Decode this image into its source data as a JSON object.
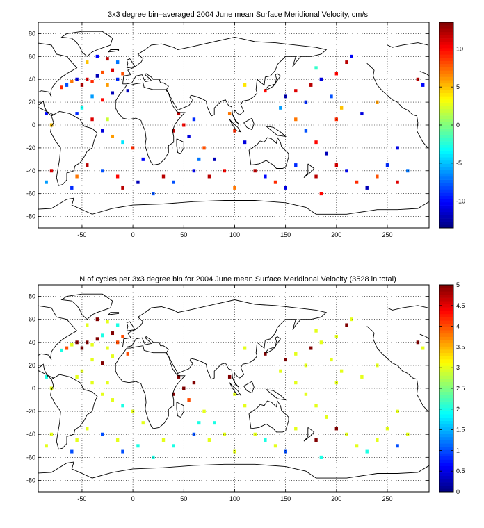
{
  "chart_data": [
    {
      "type": "heatmap",
      "title": "3x3 degree bin–averaged 2004 June mean Surface Meridional Velocity, cm/s",
      "xlabel": "",
      "ylabel": "",
      "xlim": [
        -93,
        291
      ],
      "ylim": [
        -90,
        90
      ],
      "x_ticks": [
        -50,
        0,
        50,
        100,
        150,
        200,
        250
      ],
      "y_ticks": [
        -80,
        -60,
        -40,
        -20,
        0,
        20,
        40,
        60,
        80
      ],
      "grid": true,
      "bin_size_deg": 3,
      "colorbar": {
        "range": [
          -13.5,
          13.5
        ],
        "ticks": [
          -10,
          -5,
          0,
          5,
          10
        ],
        "colormap": "jet",
        "placement": "right"
      },
      "cells": [
        [
          -45,
          40,
          11
        ],
        [
          -40,
          38,
          9
        ],
        [
          -35,
          43,
          -12
        ],
        [
          -30,
          46,
          8
        ],
        [
          -20,
          48,
          11
        ],
        [
          -15,
          40,
          -9
        ],
        [
          -25,
          35,
          6
        ],
        [
          -50,
          35,
          12
        ],
        [
          -55,
          40,
          -11
        ],
        [
          -60,
          38,
          7
        ],
        [
          -65,
          35,
          -8
        ],
        [
          -70,
          33,
          9
        ],
        [
          -40,
          25,
          -6
        ],
        [
          -30,
          22,
          10
        ],
        [
          -20,
          28,
          -12
        ],
        [
          -45,
          55,
          5
        ],
        [
          -35,
          60,
          -10
        ],
        [
          -25,
          58,
          12
        ],
        [
          -15,
          55,
          -7
        ],
        [
          -10,
          45,
          8
        ],
        [
          -55,
          10,
          -9
        ],
        [
          -40,
          5,
          11
        ],
        [
          -30,
          -5,
          -11
        ],
        [
          -20,
          -10,
          6
        ],
        [
          -10,
          -15,
          -4
        ],
        [
          0,
          -20,
          9
        ],
        [
          10,
          -30,
          -10
        ],
        [
          -45,
          -35,
          12
        ],
        [
          -30,
          -40,
          -8
        ],
        [
          -15,
          -45,
          10
        ],
        [
          5,
          -50,
          -12
        ],
        [
          -55,
          -45,
          7
        ],
        [
          -60,
          -55,
          -9
        ],
        [
          -80,
          -40,
          11
        ],
        [
          -85,
          -50,
          -6
        ],
        [
          -80,
          0,
          5
        ],
        [
          -85,
          10,
          -10
        ],
        [
          40,
          -5,
          12
        ],
        [
          50,
          0,
          10
        ],
        [
          55,
          -10,
          -11
        ],
        [
          45,
          10,
          12
        ],
        [
          60,
          5,
          -9
        ],
        [
          70,
          -20,
          8
        ],
        [
          80,
          -30,
          -12
        ],
        [
          90,
          -40,
          10
        ],
        [
          60,
          -40,
          -10
        ],
        [
          30,
          -45,
          12
        ],
        [
          40,
          -50,
          -8
        ],
        [
          100,
          -5,
          9
        ],
        [
          110,
          -15,
          -11
        ],
        [
          95,
          10,
          7
        ],
        [
          120,
          -40,
          12
        ],
        [
          130,
          -45,
          -10
        ],
        [
          140,
          -50,
          9
        ],
        [
          150,
          25,
          -12
        ],
        [
          160,
          30,
          11
        ],
        [
          170,
          20,
          -9
        ],
        [
          175,
          35,
          12
        ],
        [
          185,
          40,
          -11
        ],
        [
          200,
          45,
          10
        ],
        [
          210,
          55,
          12
        ],
        [
          215,
          60,
          -10
        ],
        [
          160,
          5,
          7
        ],
        [
          170,
          -5,
          -8
        ],
        [
          180,
          -15,
          10
        ],
        [
          190,
          -25,
          -12
        ],
        [
          200,
          -35,
          11
        ],
        [
          210,
          -40,
          -10
        ],
        [
          220,
          -50,
          9
        ],
        [
          230,
          -55,
          -12
        ],
        [
          240,
          -45,
          8
        ],
        [
          250,
          -35,
          -9
        ],
        [
          260,
          -50,
          11
        ],
        [
          270,
          -40,
          -7
        ],
        [
          280,
          40,
          12
        ],
        [
          285,
          35,
          -10
        ],
        [
          240,
          20,
          6
        ],
        [
          225,
          10,
          -11
        ],
        [
          200,
          5,
          9
        ],
        [
          180,
          -45,
          12
        ],
        [
          185,
          -60,
          10
        ],
        [
          160,
          -35,
          -9
        ],
        [
          145,
          15,
          -6
        ],
        [
          130,
          30,
          10
        ],
        [
          -5,
          30,
          -12
        ],
        [
          -10,
          -55,
          12
        ],
        [
          20,
          -60,
          -8
        ],
        [
          100,
          -55,
          7
        ],
        [
          150,
          -55,
          -11
        ],
        [
          75,
          -45,
          12
        ],
        [
          65,
          -30,
          -7
        ],
        [
          195,
          25,
          -8
        ],
        [
          205,
          15,
          5
        ],
        [
          260,
          -20,
          -10
        ],
        [
          -50,
          15,
          -3
        ],
        [
          -25,
          5,
          2
        ],
        [
          110,
          35,
          4
        ],
        [
          180,
          50,
          -2
        ]
      ]
    },
    {
      "type": "heatmap",
      "title": "N of cycles per 3x3 degree bin for 2004 June mean Surface Meridional Velocity (3528 in total)",
      "xlabel": "",
      "ylabel": "",
      "xlim": [
        -93,
        291
      ],
      "ylim": [
        -90,
        90
      ],
      "x_ticks": [
        -50,
        0,
        50,
        100,
        150,
        200,
        250
      ],
      "y_ticks": [
        -80,
        -60,
        -40,
        -20,
        0,
        20,
        40,
        60,
        80
      ],
      "grid": true,
      "bin_size_deg": 3,
      "colorbar": {
        "range": [
          0,
          5
        ],
        "ticks": [
          0,
          0.5,
          1,
          1.5,
          2,
          2.5,
          3,
          3.5,
          4,
          4.5,
          5
        ],
        "colormap": "jet",
        "placement": "right"
      },
      "cells": [
        [
          -45,
          40,
          5
        ],
        [
          -40,
          38,
          3
        ],
        [
          -35,
          43,
          5
        ],
        [
          -30,
          46,
          2
        ],
        [
          -20,
          48,
          5
        ],
        [
          -15,
          40,
          4
        ],
        [
          -25,
          35,
          3
        ],
        [
          -50,
          35,
          5
        ],
        [
          -55,
          40,
          5
        ],
        [
          -60,
          38,
          3
        ],
        [
          -65,
          35,
          4
        ],
        [
          -70,
          33,
          2
        ],
        [
          -40,
          25,
          3
        ],
        [
          -30,
          22,
          5
        ],
        [
          -20,
          28,
          3
        ],
        [
          -45,
          55,
          3
        ],
        [
          -35,
          60,
          5
        ],
        [
          -25,
          58,
          3
        ],
        [
          -15,
          55,
          2
        ],
        [
          -10,
          45,
          4
        ],
        [
          -55,
          10,
          3
        ],
        [
          -40,
          5,
          3
        ],
        [
          -30,
          -5,
          3
        ],
        [
          -20,
          -10,
          3
        ],
        [
          -10,
          -15,
          2
        ],
        [
          0,
          -20,
          3
        ],
        [
          10,
          -30,
          3
        ],
        [
          -45,
          -35,
          3
        ],
        [
          -30,
          -40,
          1
        ],
        [
          -15,
          -45,
          3
        ],
        [
          5,
          -50,
          2
        ],
        [
          -55,
          -45,
          3
        ],
        [
          -60,
          -55,
          1
        ],
        [
          -80,
          -40,
          3
        ],
        [
          -85,
          -50,
          3
        ],
        [
          -80,
          0,
          3
        ],
        [
          -85,
          10,
          2
        ],
        [
          40,
          -5,
          5
        ],
        [
          50,
          0,
          5
        ],
        [
          55,
          -10,
          4
        ],
        [
          45,
          10,
          5
        ],
        [
          60,
          5,
          5
        ],
        [
          70,
          -20,
          3
        ],
        [
          80,
          -30,
          2
        ],
        [
          90,
          -40,
          3
        ],
        [
          60,
          -40,
          1
        ],
        [
          30,
          -45,
          3
        ],
        [
          40,
          -50,
          2
        ],
        [
          100,
          -5,
          3
        ],
        [
          110,
          -15,
          3
        ],
        [
          95,
          10,
          5
        ],
        [
          120,
          -40,
          3
        ],
        [
          130,
          -45,
          2
        ],
        [
          140,
          -50,
          3
        ],
        [
          150,
          25,
          5
        ],
        [
          160,
          30,
          3
        ],
        [
          170,
          20,
          3
        ],
        [
          175,
          35,
          5
        ],
        [
          185,
          40,
          3
        ],
        [
          200,
          45,
          3
        ],
        [
          210,
          55,
          5
        ],
        [
          215,
          60,
          3
        ],
        [
          160,
          5,
          3
        ],
        [
          170,
          -5,
          3
        ],
        [
          180,
          -15,
          3
        ],
        [
          190,
          -25,
          3
        ],
        [
          200,
          -35,
          5
        ],
        [
          210,
          -40,
          3
        ],
        [
          220,
          -50,
          3
        ],
        [
          230,
          -55,
          2
        ],
        [
          240,
          -45,
          3
        ],
        [
          250,
          -35,
          3
        ],
        [
          260,
          -50,
          1
        ],
        [
          270,
          -40,
          3
        ],
        [
          280,
          40,
          5
        ],
        [
          285,
          35,
          3
        ],
        [
          240,
          20,
          3
        ],
        [
          225,
          10,
          3
        ],
        [
          200,
          5,
          3
        ],
        [
          180,
          -45,
          5
        ],
        [
          185,
          -60,
          2
        ],
        [
          160,
          -35,
          3
        ],
        [
          145,
          15,
          3
        ],
        [
          130,
          30,
          5
        ],
        [
          -5,
          30,
          4
        ],
        [
          -10,
          -55,
          1
        ],
        [
          20,
          -60,
          2
        ],
        [
          100,
          -55,
          3
        ],
        [
          150,
          -55,
          1
        ],
        [
          75,
          -45,
          3
        ],
        [
          65,
          -30,
          2
        ],
        [
          195,
          25,
          3
        ],
        [
          205,
          15,
          3
        ],
        [
          260,
          -20,
          3
        ],
        [
          -50,
          15,
          3
        ],
        [
          -25,
          5,
          3
        ],
        [
          110,
          35,
          3
        ],
        [
          180,
          50,
          3
        ]
      ]
    }
  ]
}
